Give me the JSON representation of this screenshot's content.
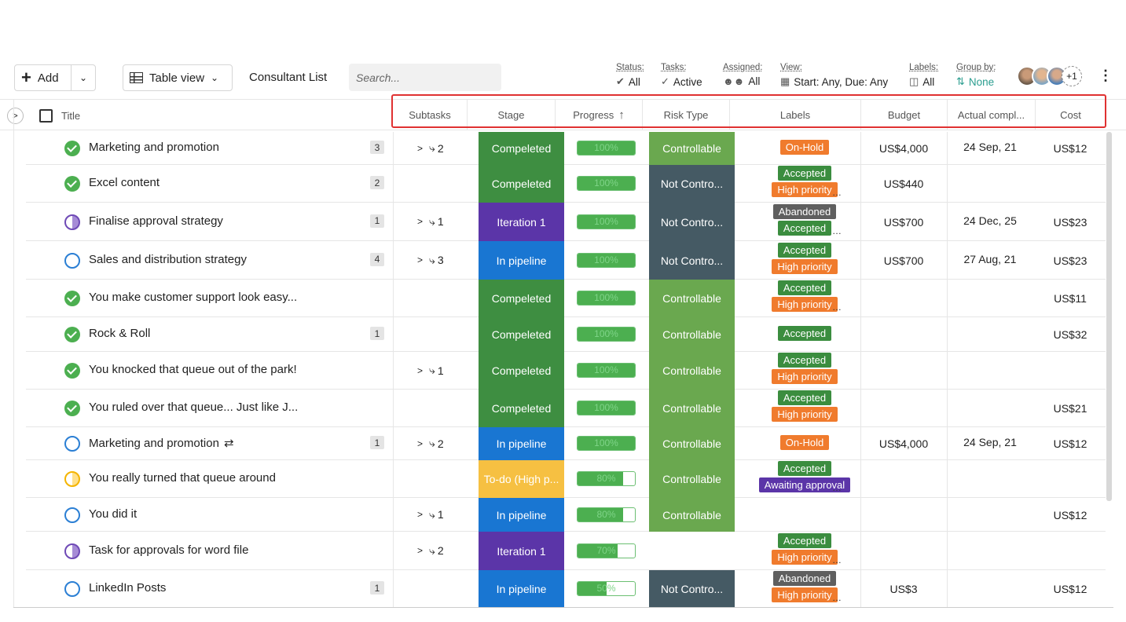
{
  "toolbar": {
    "add_label": "Add",
    "view_label": "Table view",
    "list_name": "Consultant List",
    "search_placeholder": "Search...",
    "filters": {
      "status": {
        "label": "Status:",
        "value": "All"
      },
      "tasks": {
        "label": "Tasks:",
        "value": "Active"
      },
      "assigned": {
        "label": "Assigned:",
        "value": "All"
      },
      "view": {
        "label": "View:",
        "value": "Start: Any, Due: Any"
      },
      "labels": {
        "label": "Labels:",
        "value": "All"
      },
      "group_by": {
        "label": "Group by:",
        "value": "None"
      }
    },
    "members_extra": "+1"
  },
  "header": {
    "title": "Title",
    "subtasks": "Subtasks",
    "stage": "Stage",
    "progress": "Progress",
    "risk_type": "Risk Type",
    "labels": "Labels",
    "budget": "Budget",
    "actual_completion": "Actual compl...",
    "cost": "Cost"
  },
  "colors": {
    "completed": "#3e8e41",
    "iteration": "#5b35a8",
    "pipeline": "#1976d2",
    "todo": "#f6c042",
    "controllable": "#6aa84f",
    "not_controllable": "#455a64",
    "onhold": "#f07b2d",
    "accepted": "#3b8d3f",
    "high_priority": "#f07b2d",
    "abandoned": "#5f5f5f",
    "awaiting": "#5b35a8"
  },
  "rows": [
    {
      "status": "done",
      "title": "Marketing and promotion",
      "comments": "3",
      "subtasks": "2",
      "stage": "Compeleted",
      "stage_color": "#3e8e41",
      "progress": 100,
      "progress_label": "100%",
      "risk": "Controllable",
      "risk_color": "#6aa84f",
      "labels": [
        {
          "text": "On-Hold",
          "color": "#f07b2d"
        }
      ],
      "more": false,
      "budget": "US$4,000",
      "due": "24 Sep, 21",
      "cost": "US$12"
    },
    {
      "status": "done",
      "title": "Excel content",
      "comments": "2",
      "subtasks": "",
      "stage": "Compeleted",
      "stage_color": "#3e8e41",
      "progress": 100,
      "progress_label": "100%",
      "risk": "Not Contro...",
      "risk_color": "#455a64",
      "labels": [
        {
          "text": "Accepted",
          "color": "#3b8d3f"
        },
        {
          "text": "High priority",
          "color": "#f07b2d"
        }
      ],
      "more": true,
      "budget": "US$440",
      "due": "",
      "cost": ""
    },
    {
      "status": "half",
      "title": "Finalise approval strategy",
      "comments": "1",
      "subtasks": "1",
      "stage": "Iteration 1",
      "stage_color": "#5b35a8",
      "progress": 100,
      "progress_label": "100%",
      "risk": "Not Contro...",
      "risk_color": "#455a64",
      "labels": [
        {
          "text": "Abandoned",
          "color": "#5f5f5f"
        },
        {
          "text": "Accepted",
          "color": "#3b8d3f"
        }
      ],
      "more": true,
      "budget": "US$700",
      "due": "24 Dec, 25",
      "cost": "US$23"
    },
    {
      "status": "open",
      "title": "Sales and distribution strategy",
      "comments": "4",
      "subtasks": "3",
      "stage": "In pipeline",
      "stage_color": "#1976d2",
      "progress": 100,
      "progress_label": "100%",
      "risk": "Not Contro...",
      "risk_color": "#455a64",
      "labels": [
        {
          "text": "Accepted",
          "color": "#3b8d3f"
        },
        {
          "text": "High priority",
          "color": "#f07b2d"
        }
      ],
      "more": false,
      "budget": "US$700",
      "due": "27 Aug, 21",
      "cost": "US$23"
    },
    {
      "status": "done",
      "title": "You make customer support look easy...",
      "comments": "",
      "subtasks": "",
      "stage": "Compeleted",
      "stage_color": "#3e8e41",
      "progress": 100,
      "progress_label": "100%",
      "risk": "Controllable",
      "risk_color": "#6aa84f",
      "labels": [
        {
          "text": "Accepted",
          "color": "#3b8d3f"
        },
        {
          "text": "High priority",
          "color": "#f07b2d"
        }
      ],
      "more": true,
      "budget": "",
      "due": "",
      "cost": "US$11"
    },
    {
      "status": "done",
      "title": "Rock & Roll",
      "comments": "1",
      "subtasks": "",
      "stage": "Compeleted",
      "stage_color": "#3e8e41",
      "progress": 100,
      "progress_label": "100%",
      "risk": "Controllable",
      "risk_color": "#6aa84f",
      "labels": [
        {
          "text": "Accepted",
          "color": "#3b8d3f"
        }
      ],
      "more": false,
      "budget": "",
      "due": "",
      "cost": "US$32"
    },
    {
      "status": "done",
      "title": "You knocked that queue out of the park!",
      "comments": "",
      "subtasks": "1",
      "stage": "Compeleted",
      "stage_color": "#3e8e41",
      "progress": 100,
      "progress_label": "100%",
      "risk": "Controllable",
      "risk_color": "#6aa84f",
      "labels": [
        {
          "text": "Accepted",
          "color": "#3b8d3f"
        },
        {
          "text": "High priority",
          "color": "#f07b2d"
        }
      ],
      "more": false,
      "budget": "",
      "due": "",
      "cost": ""
    },
    {
      "status": "done",
      "title": "You ruled over that queue... Just like J...",
      "comments": "",
      "subtasks": "",
      "stage": "Compeleted",
      "stage_color": "#3e8e41",
      "progress": 100,
      "progress_label": "100%",
      "risk": "Controllable",
      "risk_color": "#6aa84f",
      "labels": [
        {
          "text": "Accepted",
          "color": "#3b8d3f"
        },
        {
          "text": "High priority",
          "color": "#f07b2d"
        }
      ],
      "more": false,
      "budget": "",
      "due": "",
      "cost": "US$21"
    },
    {
      "status": "open",
      "title": "Marketing and promotion",
      "recurring": true,
      "comments": "1",
      "subtasks": "2",
      "stage": "In pipeline",
      "stage_color": "#1976d2",
      "progress": 100,
      "progress_label": "100%",
      "risk": "Controllable",
      "risk_color": "#6aa84f",
      "labels": [
        {
          "text": "On-Hold",
          "color": "#f07b2d"
        }
      ],
      "more": false,
      "budget": "US$4,000",
      "due": "24 Sep, 21",
      "cost": "US$12"
    },
    {
      "status": "yellow",
      "title": "You really turned that queue around",
      "comments": "",
      "subtasks": "",
      "stage": "To-do (High p...",
      "stage_color": "#f6c042",
      "progress": 80,
      "progress_label": "80%",
      "risk": "Controllable",
      "risk_color": "#6aa84f",
      "labels": [
        {
          "text": "Accepted",
          "color": "#3b8d3f"
        },
        {
          "text": "Awaiting approval",
          "color": "#5b35a8"
        }
      ],
      "more": true,
      "budget": "",
      "due": "",
      "cost": ""
    },
    {
      "status": "open",
      "title": "You did it",
      "comments": "",
      "subtasks": "1",
      "stage": "In pipeline",
      "stage_color": "#1976d2",
      "progress": 80,
      "progress_label": "80%",
      "risk": "Controllable",
      "risk_color": "#6aa84f",
      "labels": [],
      "more": false,
      "budget": "",
      "due": "",
      "cost": "US$12"
    },
    {
      "status": "half",
      "title": "Task for approvals for word file",
      "comments": "",
      "subtasks": "2",
      "stage": "Iteration 1",
      "stage_color": "#5b35a8",
      "progress": 70,
      "progress_label": "70%",
      "risk": "",
      "risk_color": "",
      "labels": [
        {
          "text": "Accepted",
          "color": "#3b8d3f"
        },
        {
          "text": "High priority",
          "color": "#f07b2d"
        }
      ],
      "more": true,
      "budget": "",
      "due": "",
      "cost": ""
    },
    {
      "status": "open",
      "title": "LinkedIn Posts",
      "comments": "1",
      "subtasks": "",
      "stage": "In pipeline",
      "stage_color": "#1976d2",
      "progress": 50,
      "progress_label": "50%",
      "risk": "Not Contro...",
      "risk_color": "#455a64",
      "labels": [
        {
          "text": "Abandoned",
          "color": "#5f5f5f"
        },
        {
          "text": "High priority",
          "color": "#f07b2d"
        }
      ],
      "more": true,
      "budget": "US$3",
      "due": "",
      "cost": "US$12"
    }
  ]
}
